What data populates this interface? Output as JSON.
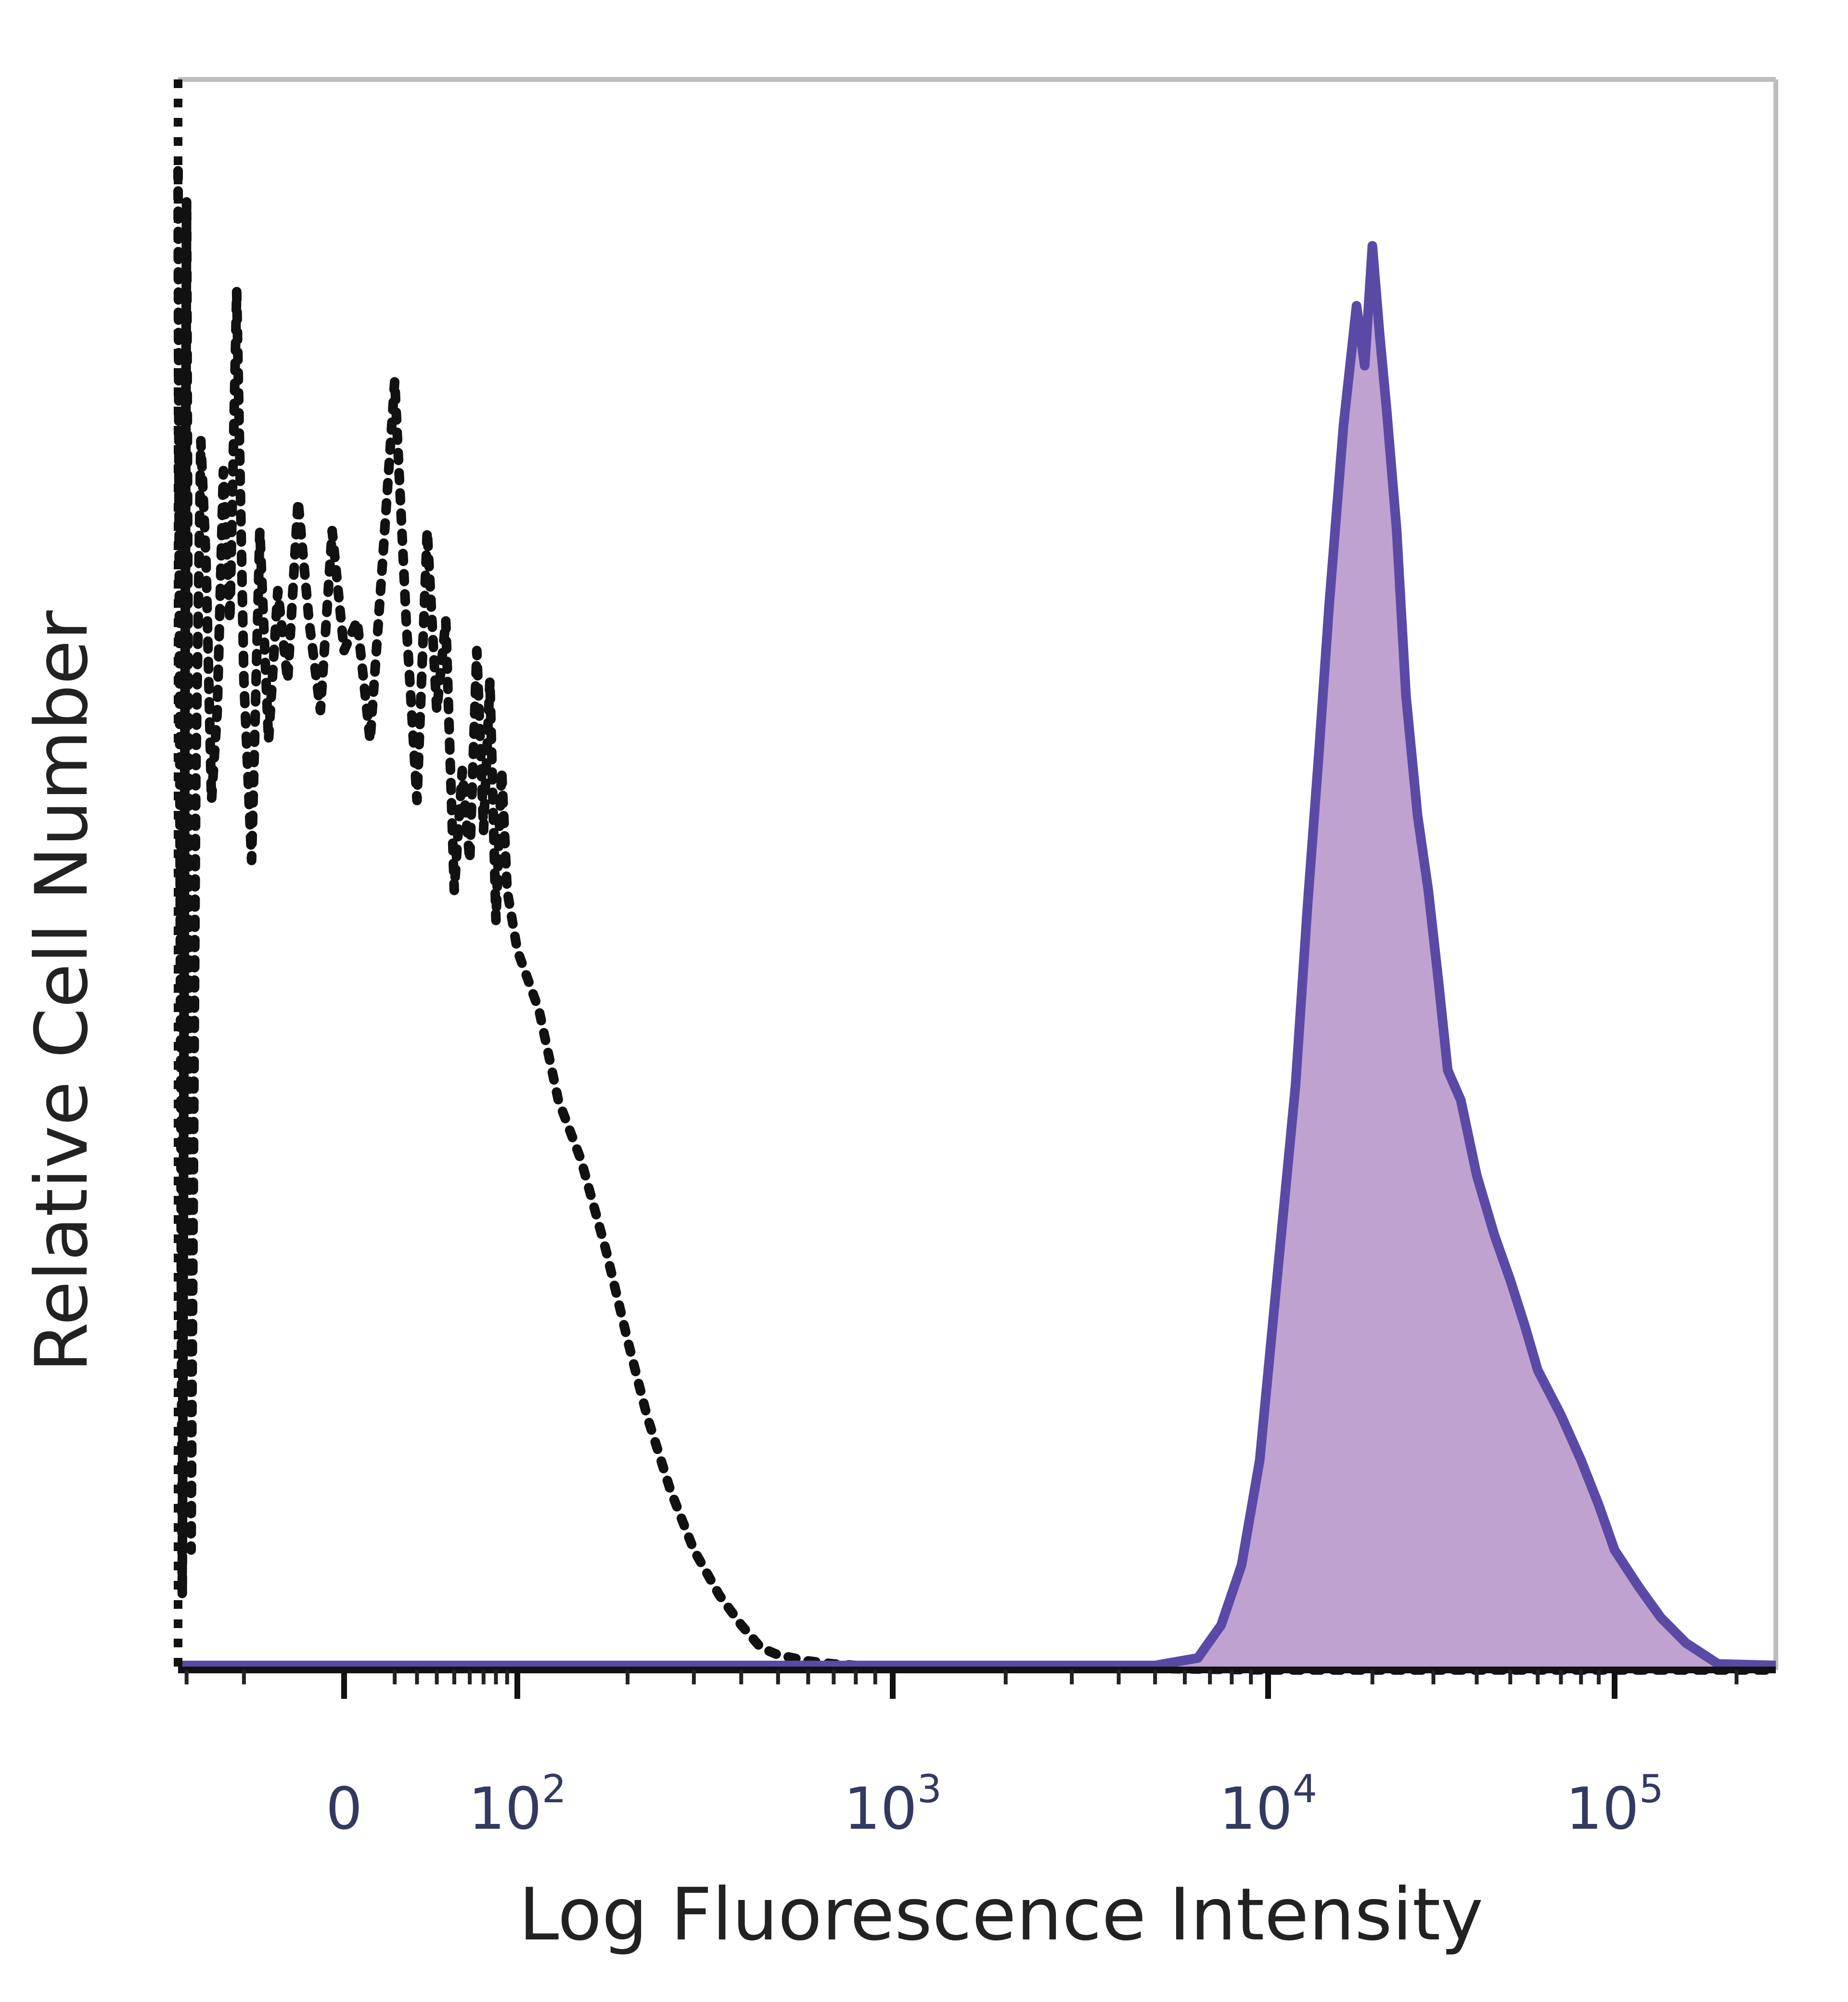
{
  "chart_data": {
    "type": "area",
    "title": "",
    "xlabel": "Log Fluorescence Intensity",
    "ylabel": "Relative Cell Number",
    "x_scale": "biexponential",
    "x_ticks": [
      {
        "value": 0,
        "label": "0",
        "base": "",
        "exp": ""
      },
      {
        "value": 100,
        "label": "10^2",
        "base": "10",
        "exp": "2"
      },
      {
        "value": 1000,
        "label": "10^3",
        "base": "10",
        "exp": "3"
      },
      {
        "value": 10000,
        "label": "10^4",
        "base": "10",
        "exp": "4"
      },
      {
        "value": 100000,
        "label": "10^5",
        "base": "10",
        "exp": "5"
      }
    ],
    "xlim": [
      -110,
      250000
    ],
    "ylim": [
      0,
      100
    ],
    "grid": false,
    "legend": "none",
    "colors": {
      "control_line": "#111111",
      "stained_line": "#5a4aa6",
      "stained_fill": "#c0a2d0",
      "tick_label": "#333a60",
      "frame": "#bdbdbd"
    },
    "series": [
      {
        "style": "dotted",
        "fill": false,
        "x": [
          -110,
          -105,
          -100,
          -95,
          -90,
          -85,
          -80,
          -75,
          -70,
          -65,
          -60,
          -55,
          -50,
          -45,
          -40,
          -35,
          -30,
          -25,
          -20,
          -15,
          -10,
          -5,
          0,
          5,
          10,
          15,
          20,
          25,
          30,
          35,
          40,
          45,
          50,
          55,
          60,
          65,
          70,
          75,
          80,
          85,
          90,
          100,
          115,
          130,
          150,
          175,
          200,
          225,
          260,
          300,
          350,
          400,
          450,
          500,
          600,
          700,
          800,
          1000,
          1300,
          2000,
          3000,
          5000,
          10000,
          30000,
          100000,
          250000
        ],
        "y": [
          100,
          5,
          98,
          8,
          60,
          82,
          74,
          58,
          64,
          80,
          70,
          92,
          66,
          54,
          76,
          62,
          72,
          66,
          78,
          70,
          64,
          76,
          68,
          70,
          62,
          74,
          86,
          70,
          58,
          76,
          64,
          70,
          52,
          60,
          54,
          68,
          56,
          66,
          50,
          60,
          52,
          48,
          44,
          38,
          34,
          28,
          22,
          17,
          12,
          8,
          5,
          3,
          1.5,
          1,
          0.6,
          0.4,
          0.3,
          0.2,
          0.1,
          0.1,
          0.1,
          0.1,
          0,
          0,
          0,
          0
        ]
      },
      {
        "style": "solid",
        "fill": true,
        "x": [
          -110,
          100,
          1000,
          5000,
          6500,
          7500,
          8500,
          9500,
          10500,
          12000,
          13000,
          14000,
          15000,
          16500,
          18000,
          19000,
          20000,
          21000,
          22000,
          23500,
          25000,
          27000,
          29000,
          31000,
          33000,
          36000,
          40000,
          45000,
          50000,
          55000,
          60000,
          70000,
          80000,
          90000,
          100000,
          115000,
          130000,
          150000,
          180000,
          250000
        ],
        "y": [
          0.3,
          0.3,
          0.3,
          0.3,
          0.8,
          3,
          7,
          14,
          25,
          39,
          51,
          61,
          71,
          83,
          91,
          87,
          95,
          89,
          84,
          76,
          65,
          57,
          52,
          46,
          40,
          38,
          33,
          29,
          26,
          23,
          20,
          17,
          14,
          11,
          8,
          5.5,
          3.5,
          1.8,
          0.4,
          0.3
        ]
      }
    ]
  }
}
